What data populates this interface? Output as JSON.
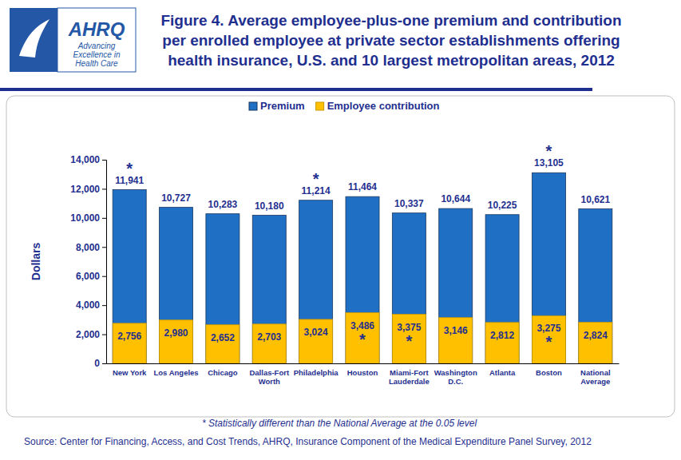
{
  "chart_data": {
    "type": "bar",
    "title": "Figure 4. Average employee-plus-one premium and contribution\nper enrolled employee at private sector establishments offering\nhealth insurance, U.S. and 10 largest metropolitan areas, 2012",
    "logo_text": [
      "AHRQ",
      "Advancing",
      "Excellence in",
      "Health Care"
    ],
    "y_label": "Dollars",
    "categories": [
      "New York",
      "Los Angeles",
      "Chicago",
      "Dallas-Fort\nWorth",
      "Philadelphia",
      "Houston",
      "Miami-Fort\nLauderdale",
      "Washington\nD.C.",
      "Atlanta",
      "Boston",
      "National\nAverage"
    ],
    "series": [
      {
        "name": "Premium",
        "color": "#1f6fc5",
        "values": [
          11941,
          10727,
          10283,
          10180,
          11214,
          11464,
          10337,
          10644,
          10225,
          13105,
          10621
        ],
        "value_labels": [
          "11,941",
          "10,727",
          "10,283",
          "10,180",
          "11,214",
          "11,464",
          "10,337",
          "10,644",
          "10,225",
          "13,105",
          "10,621"
        ],
        "flags": [
          "*",
          null,
          null,
          null,
          "*",
          null,
          null,
          null,
          null,
          "*",
          null
        ]
      },
      {
        "name": "Employee contribution",
        "color": "#ffc000",
        "values": [
          2756,
          2980,
          2652,
          2703,
          3024,
          3486,
          3375,
          3146,
          2812,
          3275,
          2824
        ],
        "value_labels": [
          "2,756",
          "2,980",
          "2,652",
          "2,703",
          "3,024",
          "3,486",
          "3,375",
          "3,146",
          "2,812",
          "3,275",
          "2,824"
        ],
        "flags": [
          null,
          null,
          null,
          null,
          null,
          "*",
          "*",
          null,
          null,
          "*",
          null
        ]
      }
    ],
    "stacked": false,
    "data_labels": true,
    "grid": false,
    "legend": "top",
    "ylim": [
      0,
      14000
    ],
    "yticks": [
      0,
      {
        "value": 2000,
        "label": "2,000"
      },
      {
        "value": 4000,
        "label": "4,000"
      },
      {
        "value": 6000,
        "label": "6,000"
      },
      {
        "value": 8000,
        "label": "8,000"
      },
      {
        "value": 10000,
        "label": "10,000"
      },
      {
        "value": 12000,
        "label": "12,000"
      },
      {
        "value": 14000,
        "label": "14,000"
      }
    ],
    "note": "* Statistically different than the National Average at the 0.05 level",
    "source": "Source: Center for Financing, Access, and Cost Trends, AHRQ, Insurance Component of the Medical Expenditure Panel Survey, 2012"
  }
}
